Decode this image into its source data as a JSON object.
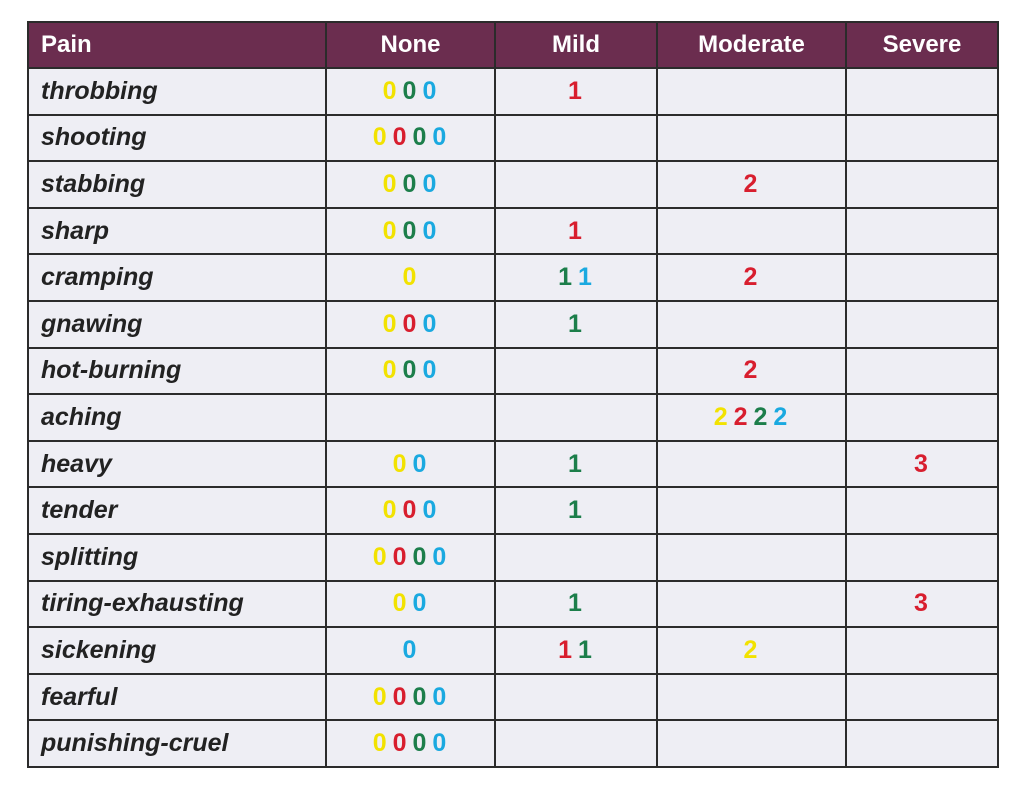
{
  "colors": {
    "header_bg": "#6b2d4f",
    "cell_bg": "#eeeef4",
    "yellow": "#f2e200",
    "red": "#d81e2e",
    "green": "#1c7e4a",
    "blue": "#1aa9e0"
  },
  "table": {
    "headers": [
      "Pain",
      "None",
      "Mild",
      "Moderate",
      "Severe"
    ],
    "rows": [
      {
        "label": "throbbing",
        "none": [
          {
            "v": "0",
            "c": "yellow"
          },
          {
            "v": "0",
            "c": "green"
          },
          {
            "v": "0",
            "c": "blue"
          }
        ],
        "mild": [
          {
            "v": "1",
            "c": "red"
          }
        ],
        "moderate": [],
        "severe": []
      },
      {
        "label": "shooting",
        "none": [
          {
            "v": "0",
            "c": "yellow"
          },
          {
            "v": "0",
            "c": "red"
          },
          {
            "v": "0",
            "c": "green"
          },
          {
            "v": "0",
            "c": "blue"
          }
        ],
        "mild": [],
        "moderate": [],
        "severe": []
      },
      {
        "label": "stabbing",
        "none": [
          {
            "v": "0",
            "c": "yellow"
          },
          {
            "v": "0",
            "c": "green"
          },
          {
            "v": "0",
            "c": "blue"
          }
        ],
        "mild": [],
        "moderate": [
          {
            "v": "2",
            "c": "red"
          }
        ],
        "severe": []
      },
      {
        "label": "sharp",
        "none": [
          {
            "v": "0",
            "c": "yellow"
          },
          {
            "v": "0",
            "c": "green"
          },
          {
            "v": "0",
            "c": "blue"
          }
        ],
        "mild": [
          {
            "v": "1",
            "c": "red"
          }
        ],
        "moderate": [],
        "severe": []
      },
      {
        "label": "cramping",
        "none": [
          {
            "v": "0",
            "c": "yellow"
          }
        ],
        "mild": [
          {
            "v": "1",
            "c": "green"
          },
          {
            "v": "1",
            "c": "blue"
          }
        ],
        "moderate": [
          {
            "v": "2",
            "c": "red"
          }
        ],
        "severe": []
      },
      {
        "label": "gnawing",
        "none": [
          {
            "v": "0",
            "c": "yellow"
          },
          {
            "v": "0",
            "c": "red"
          },
          {
            "v": "0",
            "c": "blue"
          }
        ],
        "mild": [
          {
            "v": "1",
            "c": "green"
          }
        ],
        "moderate": [],
        "severe": []
      },
      {
        "label": "hot-burning",
        "none": [
          {
            "v": "0",
            "c": "yellow"
          },
          {
            "v": "0",
            "c": "green"
          },
          {
            "v": "0",
            "c": "blue"
          }
        ],
        "mild": [],
        "moderate": [
          {
            "v": "2",
            "c": "red"
          }
        ],
        "severe": []
      },
      {
        "label": "aching",
        "none": [],
        "mild": [],
        "moderate": [
          {
            "v": "2",
            "c": "yellow"
          },
          {
            "v": "2",
            "c": "red"
          },
          {
            "v": "2",
            "c": "green"
          },
          {
            "v": "2",
            "c": "blue"
          }
        ],
        "severe": []
      },
      {
        "label": "heavy",
        "none": [
          {
            "v": "0",
            "c": "yellow"
          },
          {
            "v": "0",
            "c": "blue"
          }
        ],
        "mild": [
          {
            "v": "1",
            "c": "green"
          }
        ],
        "moderate": [],
        "severe": [
          {
            "v": "3",
            "c": "red"
          }
        ]
      },
      {
        "label": "tender",
        "none": [
          {
            "v": "0",
            "c": "yellow"
          },
          {
            "v": "0",
            "c": "red"
          },
          {
            "v": "0",
            "c": "blue"
          }
        ],
        "mild": [
          {
            "v": "1",
            "c": "green"
          }
        ],
        "moderate": [],
        "severe": []
      },
      {
        "label": "splitting",
        "none": [
          {
            "v": "0",
            "c": "yellow"
          },
          {
            "v": "0",
            "c": "red"
          },
          {
            "v": "0",
            "c": "green"
          },
          {
            "v": "0",
            "c": "blue"
          }
        ],
        "mild": [],
        "moderate": [],
        "severe": []
      },
      {
        "label": "tiring-exhausting",
        "none": [
          {
            "v": "0",
            "c": "yellow"
          },
          {
            "v": "0",
            "c": "blue"
          }
        ],
        "mild": [
          {
            "v": "1",
            "c": "green"
          }
        ],
        "moderate": [],
        "severe": [
          {
            "v": "3",
            "c": "red"
          }
        ]
      },
      {
        "label": "sickening",
        "none": [
          {
            "v": "0",
            "c": "blue"
          }
        ],
        "mild": [
          {
            "v": "1",
            "c": "red"
          },
          {
            "v": "1",
            "c": "green"
          }
        ],
        "moderate": [
          {
            "v": "2",
            "c": "yellow"
          }
        ],
        "severe": []
      },
      {
        "label": "fearful",
        "none": [
          {
            "v": "0",
            "c": "yellow"
          },
          {
            "v": "0",
            "c": "red"
          },
          {
            "v": "0",
            "c": "green"
          },
          {
            "v": "0",
            "c": "blue"
          }
        ],
        "mild": [],
        "moderate": [],
        "severe": []
      },
      {
        "label": "punishing-cruel",
        "none": [
          {
            "v": "0",
            "c": "yellow"
          },
          {
            "v": "0",
            "c": "red"
          },
          {
            "v": "0",
            "c": "green"
          },
          {
            "v": "0",
            "c": "blue"
          }
        ],
        "mild": [],
        "moderate": [],
        "severe": []
      }
    ]
  }
}
